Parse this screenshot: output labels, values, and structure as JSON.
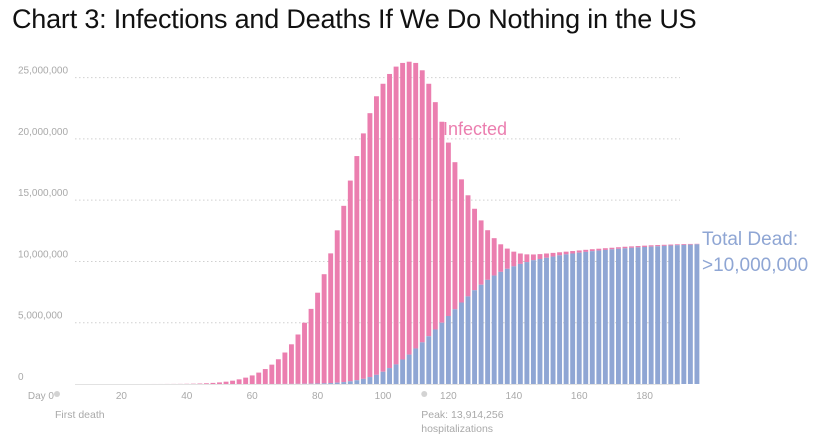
{
  "title": "Chart 3: Infections and Deaths If We Do Nothing in the US",
  "chart_data": {
    "type": "bar",
    "stacked": true,
    "grid": "horizontal dotted",
    "colors": {
      "dead": "#8fa6d4",
      "infected": "#eb7eaf",
      "grid": "#d0d0d0",
      "axis_text": "#a9a9a9"
    },
    "ylim": [
      0,
      27500000
    ],
    "y_ticks": [
      0,
      5000000,
      10000000,
      15000000,
      20000000,
      25000000
    ],
    "y_tick_labels": [
      "0",
      "5,000,000",
      "10,000,000",
      "15,000,000",
      "20,000,000",
      "25,000,000"
    ],
    "x_ticks": [
      0,
      20,
      40,
      60,
      80,
      100,
      120,
      140,
      160,
      180
    ],
    "x_tick_labels": [
      "Day 0",
      "20",
      "40",
      "60",
      "80",
      "100",
      "120",
      "140",
      "160",
      "180"
    ],
    "series_labels": {
      "infected": "Infected",
      "dead_line1": "Total Dead:",
      "dead_line2": ">10,000,000"
    },
    "annotations": [
      {
        "x": 0,
        "text": "First death"
      },
      {
        "x": 112,
        "text_line1": "Peak: 13,914,256",
        "text_line2": "hospitalizations"
      }
    ],
    "x": [
      0,
      2,
      4,
      6,
      8,
      10,
      12,
      14,
      16,
      18,
      20,
      22,
      24,
      26,
      28,
      30,
      32,
      34,
      36,
      38,
      40,
      42,
      44,
      46,
      48,
      50,
      52,
      54,
      56,
      58,
      60,
      62,
      64,
      66,
      68,
      70,
      72,
      74,
      76,
      78,
      80,
      82,
      84,
      86,
      88,
      90,
      92,
      94,
      96,
      98,
      100,
      102,
      104,
      106,
      108,
      110,
      112,
      114,
      116,
      118,
      120,
      122,
      124,
      126,
      128,
      130,
      132,
      134,
      136,
      138,
      140,
      142,
      144,
      146,
      148,
      150,
      152,
      154,
      156,
      158,
      160,
      162,
      164,
      166,
      168,
      170,
      172,
      174,
      176,
      178,
      180,
      182,
      184,
      186,
      188,
      190,
      192,
      194,
      196
    ],
    "series": [
      {
        "name": "Total Dead",
        "values": [
          0,
          0,
          0,
          0,
          0,
          0,
          0,
          0,
          0,
          0,
          0,
          0,
          0,
          0,
          0,
          0,
          0,
          0,
          0,
          0,
          0,
          0,
          0,
          0,
          0,
          0,
          0,
          0,
          0,
          0,
          1000,
          1000,
          2000,
          3000,
          4000,
          6000,
          9000,
          12000,
          18000,
          26000,
          37000,
          54000,
          77000,
          110000,
          156000,
          220000,
          307000,
          421000,
          567000,
          750000,
          1000000,
          1300000,
          1600000,
          2000000,
          2400000,
          2900000,
          3400000,
          3900000,
          4450000,
          5000000,
          5550000,
          6100000,
          6650000,
          7150000,
          7650000,
          8100000,
          8500000,
          8850000,
          9150000,
          9400000,
          9600000,
          9800000,
          9950000,
          10100000,
          10200000,
          10300000,
          10400000,
          10500000,
          10580000,
          10650000,
          10720000,
          10780000,
          10840000,
          10890000,
          10940000,
          10990000,
          11030000,
          11070000,
          11110000,
          11150000,
          11180000,
          11210000,
          11240000,
          11270000,
          11300000,
          11330000,
          11350000,
          11370000,
          11400000
        ]
      },
      {
        "name": "Infected",
        "values": [
          0,
          0,
          0,
          0,
          0,
          0,
          0,
          0,
          0,
          0,
          0,
          0,
          0,
          0,
          1000,
          1500,
          2500,
          4000,
          6500,
          10000,
          16000,
          25000,
          40000,
          60000,
          90000,
          130000,
          190000,
          270000,
          380000,
          520000,
          700000,
          930000,
          1220000,
          1580000,
          2020000,
          2570000,
          3240000,
          4040000,
          5000000,
          6130000,
          7450000,
          8960000,
          10660000,
          12540000,
          14540000,
          16600000,
          18600000,
          20450000,
          22100000,
          23480000,
          24500000,
          25300000,
          25900000,
          26200000,
          26300000,
          26200000,
          25600000,
          24500000,
          23000000,
          21400000,
          19700000,
          18100000,
          16700000,
          15400000,
          14300000,
          13350000,
          12550000,
          11900000,
          11400000,
          11050000,
          10800000,
          10650000,
          10580000,
          10570000,
          10600000,
          10650000,
          10700000,
          10750000,
          10800000,
          10850000,
          10900000,
          10950000,
          11000000,
          11040000,
          11080000,
          11120000,
          11160000,
          11200000,
          11230000,
          11260000,
          11290000,
          11320000,
          11340000,
          11360000,
          11380000,
          11400000,
          11420000,
          11430000,
          11440000
        ]
      }
    ]
  }
}
